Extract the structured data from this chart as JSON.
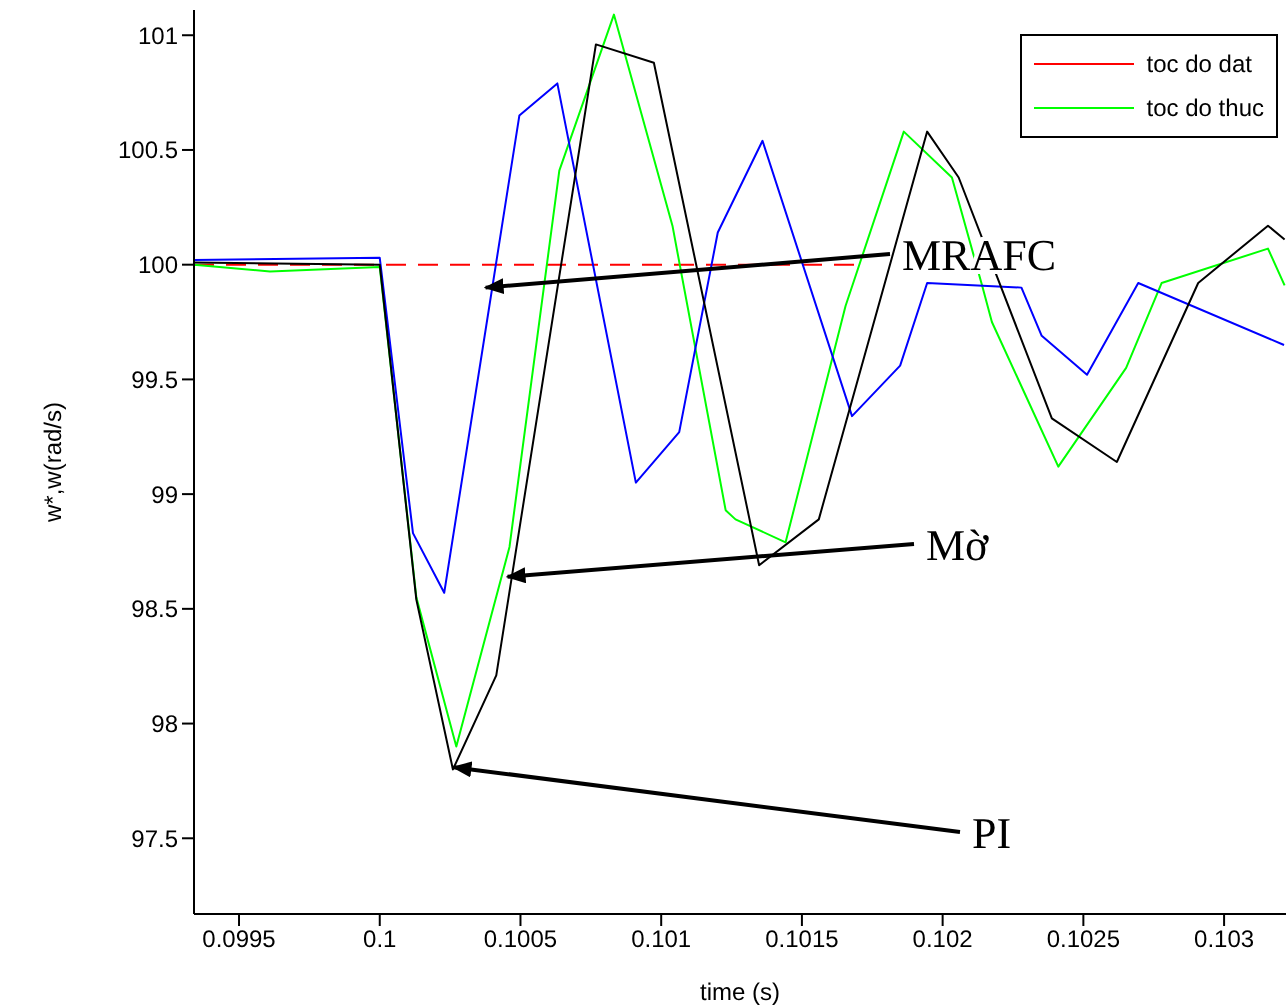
{
  "chart_data": {
    "type": "line",
    "xlabel": "time (s)",
    "ylabel": "w*,w(rad/s)",
    "xlim": [
      0.09934,
      0.10322
    ],
    "ylim": [
      97.17,
      101.11
    ],
    "xticks": [
      0.0995,
      0.1,
      0.1005,
      0.101,
      0.1015,
      0.102,
      0.1025,
      0.103
    ],
    "yticks": [
      97.5,
      98,
      98.5,
      99,
      99.5,
      100,
      100.5,
      101
    ],
    "legend": "top right",
    "series": [
      {
        "name": "toc do dat",
        "color": "#ff0000",
        "line_style": "dashed",
        "x": [
          0.09934,
          0.1017
        ],
        "values": [
          100,
          100
        ]
      },
      {
        "name": "toc do thuc",
        "color": "#00ff00",
        "x": [
          0.09934,
          0.09961,
          0.1,
          0.10013,
          0.100272,
          0.100461,
          0.100638,
          0.100832,
          0.10104,
          0.101229,
          0.101264,
          0.101442,
          0.101655,
          0.101862,
          0.102033,
          0.10214,
          0.102175,
          0.102411,
          0.102652,
          0.102778,
          0.103156,
          0.103215
        ],
        "values": [
          100.0,
          99.97,
          99.99,
          98.55,
          97.9,
          98.77,
          100.41,
          101.09,
          100.17,
          98.93,
          98.89,
          98.79,
          99.82,
          100.58,
          100.38,
          99.91,
          99.75,
          99.12,
          99.55,
          99.92,
          100.07,
          99.91
        ]
      },
      {
        "color": "#0000ff",
        "x": [
          0.09934,
          0.1,
          0.100118,
          0.100229,
          0.100496,
          0.100631,
          0.10091,
          0.101064,
          0.101201,
          0.10136,
          0.101678,
          0.101849,
          0.101945,
          0.10228,
          0.102352,
          0.102513,
          0.102695,
          0.103213
        ],
        "values": [
          100.02,
          100.03,
          98.83,
          98.57,
          100.65,
          100.79,
          99.05,
          99.27,
          100.14,
          100.54,
          99.34,
          99.56,
          99.92,
          99.9,
          99.69,
          99.52,
          99.92,
          99.65
        ]
      },
      {
        "color": "#000000",
        "x": [
          0.09934,
          0.1,
          0.10013,
          0.10026,
          0.100414,
          0.100768,
          0.100974,
          0.101348,
          0.10156,
          0.101945,
          0.102057,
          0.102388,
          0.102619,
          0.102908,
          0.103156,
          0.103215
        ],
        "values": [
          100.01,
          100.0,
          98.54,
          97.8,
          98.21,
          100.96,
          100.88,
          98.69,
          98.89,
          100.58,
          100.38,
          99.33,
          99.14,
          99.92,
          100.17,
          100.11
        ]
      }
    ],
    "annotations": [
      {
        "text": "MRAFC",
        "x": 0.100376,
        "y": 99.9
      },
      {
        "text": "Mờ",
        "x": 0.100454,
        "y": 98.64
      },
      {
        "text": "PI",
        "x": 0.100262,
        "y": 97.81
      }
    ]
  }
}
